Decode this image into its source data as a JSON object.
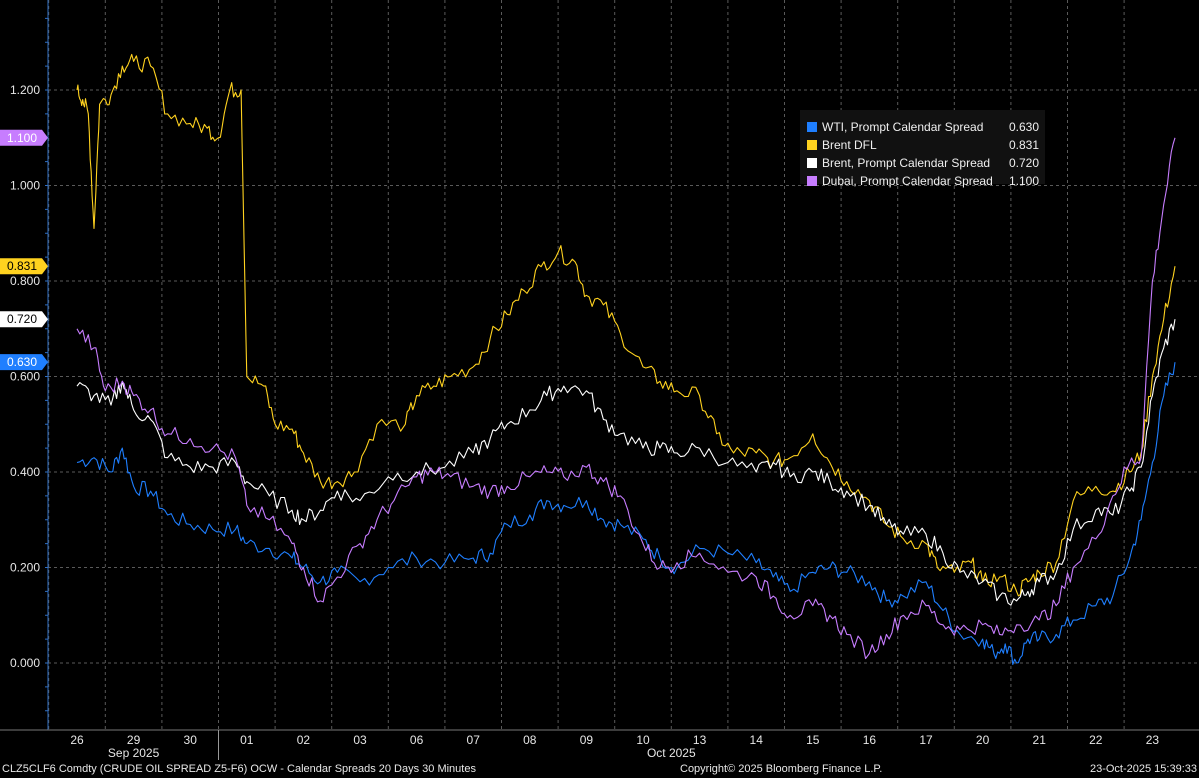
{
  "chart_data": {
    "type": "line",
    "y_ticks": [
      "1.200",
      "1.000",
      "0.800",
      "0.600",
      "0.400",
      "0.200",
      "0.000"
    ],
    "ylim": [
      -0.13,
      1.38
    ],
    "x_date_ticks": [
      "26",
      "29",
      "30",
      "01",
      "02",
      "03",
      "06",
      "07",
      "08",
      "09",
      "10",
      "13",
      "14",
      "15",
      "16",
      "17",
      "20",
      "21",
      "22",
      "23"
    ],
    "x_month_labels": [
      "Sep 2025",
      "Oct 2025"
    ],
    "grid": true,
    "legend_position": "top-right",
    "series": [
      {
        "name": "WTI, Prompt Calendar Spread",
        "value_label": "0.630",
        "color": "#1f7fff",
        "points": [
          [
            0,
            0.42
          ],
          [
            0.3,
            0.43
          ],
          [
            0.6,
            0.4
          ],
          [
            0.8,
            0.45
          ],
          [
            1.0,
            0.37
          ],
          [
            1.3,
            0.36
          ],
          [
            1.6,
            0.31
          ],
          [
            2.0,
            0.29
          ],
          [
            2.4,
            0.28
          ],
          [
            2.8,
            0.28
          ],
          [
            3.0,
            0.25
          ],
          [
            3.4,
            0.24
          ],
          [
            3.8,
            0.22
          ],
          [
            4.0,
            0.2
          ],
          [
            4.3,
            0.17
          ],
          [
            4.6,
            0.19
          ],
          [
            5.0,
            0.17
          ],
          [
            5.5,
            0.2
          ],
          [
            6.0,
            0.22
          ],
          [
            6.5,
            0.21
          ],
          [
            7.0,
            0.22
          ],
          [
            7.3,
            0.23
          ],
          [
            7.6,
            0.29
          ],
          [
            8.0,
            0.31
          ],
          [
            8.3,
            0.34
          ],
          [
            8.6,
            0.33
          ],
          [
            9.0,
            0.34
          ],
          [
            9.3,
            0.3
          ],
          [
            9.6,
            0.29
          ],
          [
            10.0,
            0.26
          ],
          [
            10.3,
            0.22
          ],
          [
            10.6,
            0.2
          ],
          [
            11.0,
            0.24
          ],
          [
            11.5,
            0.23
          ],
          [
            12.0,
            0.21
          ],
          [
            12.3,
            0.18
          ],
          [
            12.6,
            0.15
          ],
          [
            13.0,
            0.19
          ],
          [
            13.3,
            0.2
          ],
          [
            13.6,
            0.19
          ],
          [
            14.0,
            0.17
          ],
          [
            14.3,
            0.13
          ],
          [
            14.6,
            0.14
          ],
          [
            15.0,
            0.17
          ],
          [
            15.3,
            0.11
          ],
          [
            15.6,
            0.06
          ],
          [
            16.0,
            0.05
          ],
          [
            16.2,
            0.02
          ],
          [
            16.4,
            0.04
          ],
          [
            16.6,
            0.0
          ],
          [
            16.8,
            0.05
          ],
          [
            17.0,
            0.05
          ],
          [
            17.3,
            0.06
          ],
          [
            17.6,
            0.09
          ],
          [
            18.0,
            0.12
          ],
          [
            18.3,
            0.14
          ],
          [
            18.6,
            0.22
          ],
          [
            18.8,
            0.3
          ],
          [
            19.0,
            0.42
          ],
          [
            19.2,
            0.56
          ],
          [
            19.4,
            0.63
          ]
        ]
      },
      {
        "name": "Brent DFL",
        "value_label": "0.831",
        "color": "#ffd21f",
        "points": [
          [
            0,
            1.2
          ],
          [
            0.1,
            1.18
          ],
          [
            0.2,
            1.15
          ],
          [
            0.3,
            0.91
          ],
          [
            0.4,
            1.17
          ],
          [
            0.6,
            1.19
          ],
          [
            0.8,
            1.25
          ],
          [
            1.0,
            1.26
          ],
          [
            1.3,
            1.25
          ],
          [
            1.6,
            1.15
          ],
          [
            2.0,
            1.13
          ],
          [
            2.3,
            1.12
          ],
          [
            2.5,
            1.1
          ],
          [
            2.7,
            1.2
          ],
          [
            2.9,
            1.2
          ],
          [
            3.0,
            0.6
          ],
          [
            3.3,
            0.58
          ],
          [
            3.5,
            0.5
          ],
          [
            3.8,
            0.49
          ],
          [
            4.0,
            0.44
          ],
          [
            4.3,
            0.38
          ],
          [
            4.6,
            0.38
          ],
          [
            4.9,
            0.4
          ],
          [
            5.3,
            0.5
          ],
          [
            5.8,
            0.5
          ],
          [
            6.0,
            0.56
          ],
          [
            6.3,
            0.58
          ],
          [
            6.6,
            0.6
          ],
          [
            7.0,
            0.62
          ],
          [
            7.3,
            0.68
          ],
          [
            7.6,
            0.73
          ],
          [
            7.9,
            0.78
          ],
          [
            8.2,
            0.83
          ],
          [
            8.5,
            0.86
          ],
          [
            8.8,
            0.84
          ],
          [
            9.0,
            0.77
          ],
          [
            9.3,
            0.75
          ],
          [
            9.6,
            0.69
          ],
          [
            10.0,
            0.62
          ],
          [
            10.3,
            0.59
          ],
          [
            10.6,
            0.57
          ],
          [
            11.0,
            0.56
          ],
          [
            11.3,
            0.48
          ],
          [
            11.6,
            0.44
          ],
          [
            12.0,
            0.44
          ],
          [
            12.3,
            0.42
          ],
          [
            12.6,
            0.43
          ],
          [
            13.0,
            0.48
          ],
          [
            13.3,
            0.42
          ],
          [
            13.6,
            0.38
          ],
          [
            14.0,
            0.34
          ],
          [
            14.3,
            0.29
          ],
          [
            14.6,
            0.26
          ],
          [
            15.0,
            0.25
          ],
          [
            15.2,
            0.2
          ],
          [
            15.5,
            0.19
          ],
          [
            15.8,
            0.21
          ],
          [
            16.0,
            0.17
          ],
          [
            16.3,
            0.18
          ],
          [
            16.6,
            0.15
          ],
          [
            16.8,
            0.17
          ],
          [
            17.0,
            0.19
          ],
          [
            17.3,
            0.21
          ],
          [
            17.6,
            0.34
          ],
          [
            18.0,
            0.37
          ],
          [
            18.3,
            0.36
          ],
          [
            18.6,
            0.4
          ],
          [
            18.8,
            0.44
          ],
          [
            19.0,
            0.6
          ],
          [
            19.2,
            0.72
          ],
          [
            19.4,
            0.831
          ]
        ]
      },
      {
        "name": "Brent, Prompt Calendar Spread",
        "value_label": "0.720",
        "color": "#ffffff",
        "points": [
          [
            0,
            0.58
          ],
          [
            0.3,
            0.56
          ],
          [
            0.6,
            0.54
          ],
          [
            0.8,
            0.59
          ],
          [
            1.0,
            0.53
          ],
          [
            1.3,
            0.51
          ],
          [
            1.6,
            0.43
          ],
          [
            2.0,
            0.41
          ],
          [
            2.4,
            0.41
          ],
          [
            2.8,
            0.42
          ],
          [
            3.0,
            0.38
          ],
          [
            3.4,
            0.35
          ],
          [
            3.8,
            0.32
          ],
          [
            4.0,
            0.3
          ],
          [
            4.3,
            0.32
          ],
          [
            4.6,
            0.36
          ],
          [
            5.0,
            0.34
          ],
          [
            5.5,
            0.39
          ],
          [
            6.0,
            0.4
          ],
          [
            6.5,
            0.41
          ],
          [
            7.0,
            0.44
          ],
          [
            7.3,
            0.47
          ],
          [
            7.6,
            0.5
          ],
          [
            8.0,
            0.53
          ],
          [
            8.3,
            0.56
          ],
          [
            8.6,
            0.58
          ],
          [
            9.0,
            0.57
          ],
          [
            9.3,
            0.51
          ],
          [
            9.6,
            0.48
          ],
          [
            10.0,
            0.45
          ],
          [
            10.3,
            0.45
          ],
          [
            10.6,
            0.44
          ],
          [
            11.0,
            0.45
          ],
          [
            11.5,
            0.42
          ],
          [
            12.0,
            0.4
          ],
          [
            12.3,
            0.42
          ],
          [
            12.6,
            0.39
          ],
          [
            13.0,
            0.4
          ],
          [
            13.3,
            0.38
          ],
          [
            13.6,
            0.36
          ],
          [
            14.0,
            0.33
          ],
          [
            14.3,
            0.29
          ],
          [
            14.6,
            0.27
          ],
          [
            15.0,
            0.27
          ],
          [
            15.3,
            0.23
          ],
          [
            15.6,
            0.19
          ],
          [
            16.0,
            0.17
          ],
          [
            16.3,
            0.14
          ],
          [
            16.6,
            0.13
          ],
          [
            16.8,
            0.15
          ],
          [
            17.0,
            0.17
          ],
          [
            17.3,
            0.19
          ],
          [
            17.6,
            0.28
          ],
          [
            18.0,
            0.32
          ],
          [
            18.3,
            0.31
          ],
          [
            18.6,
            0.36
          ],
          [
            18.8,
            0.41
          ],
          [
            19.0,
            0.56
          ],
          [
            19.2,
            0.66
          ],
          [
            19.4,
            0.72
          ]
        ]
      },
      {
        "name": "Dubai, Prompt Calendar Spread",
        "value_label": "1.100",
        "color": "#c77dff",
        "points": [
          [
            0,
            0.7
          ],
          [
            0.3,
            0.66
          ],
          [
            0.5,
            0.57
          ],
          [
            0.8,
            0.59
          ],
          [
            1.0,
            0.56
          ],
          [
            1.3,
            0.53
          ],
          [
            1.6,
            0.48
          ],
          [
            2.0,
            0.47
          ],
          [
            2.4,
            0.45
          ],
          [
            2.8,
            0.43
          ],
          [
            3.0,
            0.33
          ],
          [
            3.4,
            0.3
          ],
          [
            3.8,
            0.25
          ],
          [
            4.0,
            0.2
          ],
          [
            4.3,
            0.13
          ],
          [
            4.6,
            0.18
          ],
          [
            5.0,
            0.25
          ],
          [
            5.3,
            0.3
          ],
          [
            5.6,
            0.34
          ],
          [
            6.0,
            0.39
          ],
          [
            6.3,
            0.4
          ],
          [
            6.6,
            0.39
          ],
          [
            7.0,
            0.37
          ],
          [
            7.3,
            0.36
          ],
          [
            7.6,
            0.37
          ],
          [
            8.0,
            0.39
          ],
          [
            8.3,
            0.4
          ],
          [
            8.6,
            0.39
          ],
          [
            9.0,
            0.41
          ],
          [
            9.3,
            0.38
          ],
          [
            9.6,
            0.35
          ],
          [
            10.0,
            0.25
          ],
          [
            10.3,
            0.2
          ],
          [
            10.6,
            0.21
          ],
          [
            11.0,
            0.23
          ],
          [
            11.5,
            0.19
          ],
          [
            12.0,
            0.18
          ],
          [
            12.3,
            0.14
          ],
          [
            12.6,
            0.1
          ],
          [
            13.0,
            0.12
          ],
          [
            13.3,
            0.1
          ],
          [
            13.6,
            0.06
          ],
          [
            14.0,
            0.02
          ],
          [
            14.3,
            0.06
          ],
          [
            14.6,
            0.1
          ],
          [
            15.0,
            0.12
          ],
          [
            15.3,
            0.08
          ],
          [
            15.6,
            0.07
          ],
          [
            16.0,
            0.08
          ],
          [
            16.3,
            0.06
          ],
          [
            16.6,
            0.08
          ],
          [
            17.0,
            0.09
          ],
          [
            17.3,
            0.12
          ],
          [
            17.6,
            0.2
          ],
          [
            18.0,
            0.26
          ],
          [
            18.3,
            0.35
          ],
          [
            18.6,
            0.42
          ],
          [
            18.8,
            0.43
          ],
          [
            19.0,
            0.8
          ],
          [
            19.2,
            0.96
          ],
          [
            19.4,
            1.1
          ]
        ]
      }
    ]
  },
  "footer": {
    "left": "CLZ5CLF6 Comdty (CRUDE OIL SPREAD  Z5-F6) OCW - Calendar Spreads 20 Days 30 Minutes",
    "center": "Copyright© 2025 Bloomberg Finance L.P.",
    "right": "23-Oct-2025 15:39:33"
  }
}
